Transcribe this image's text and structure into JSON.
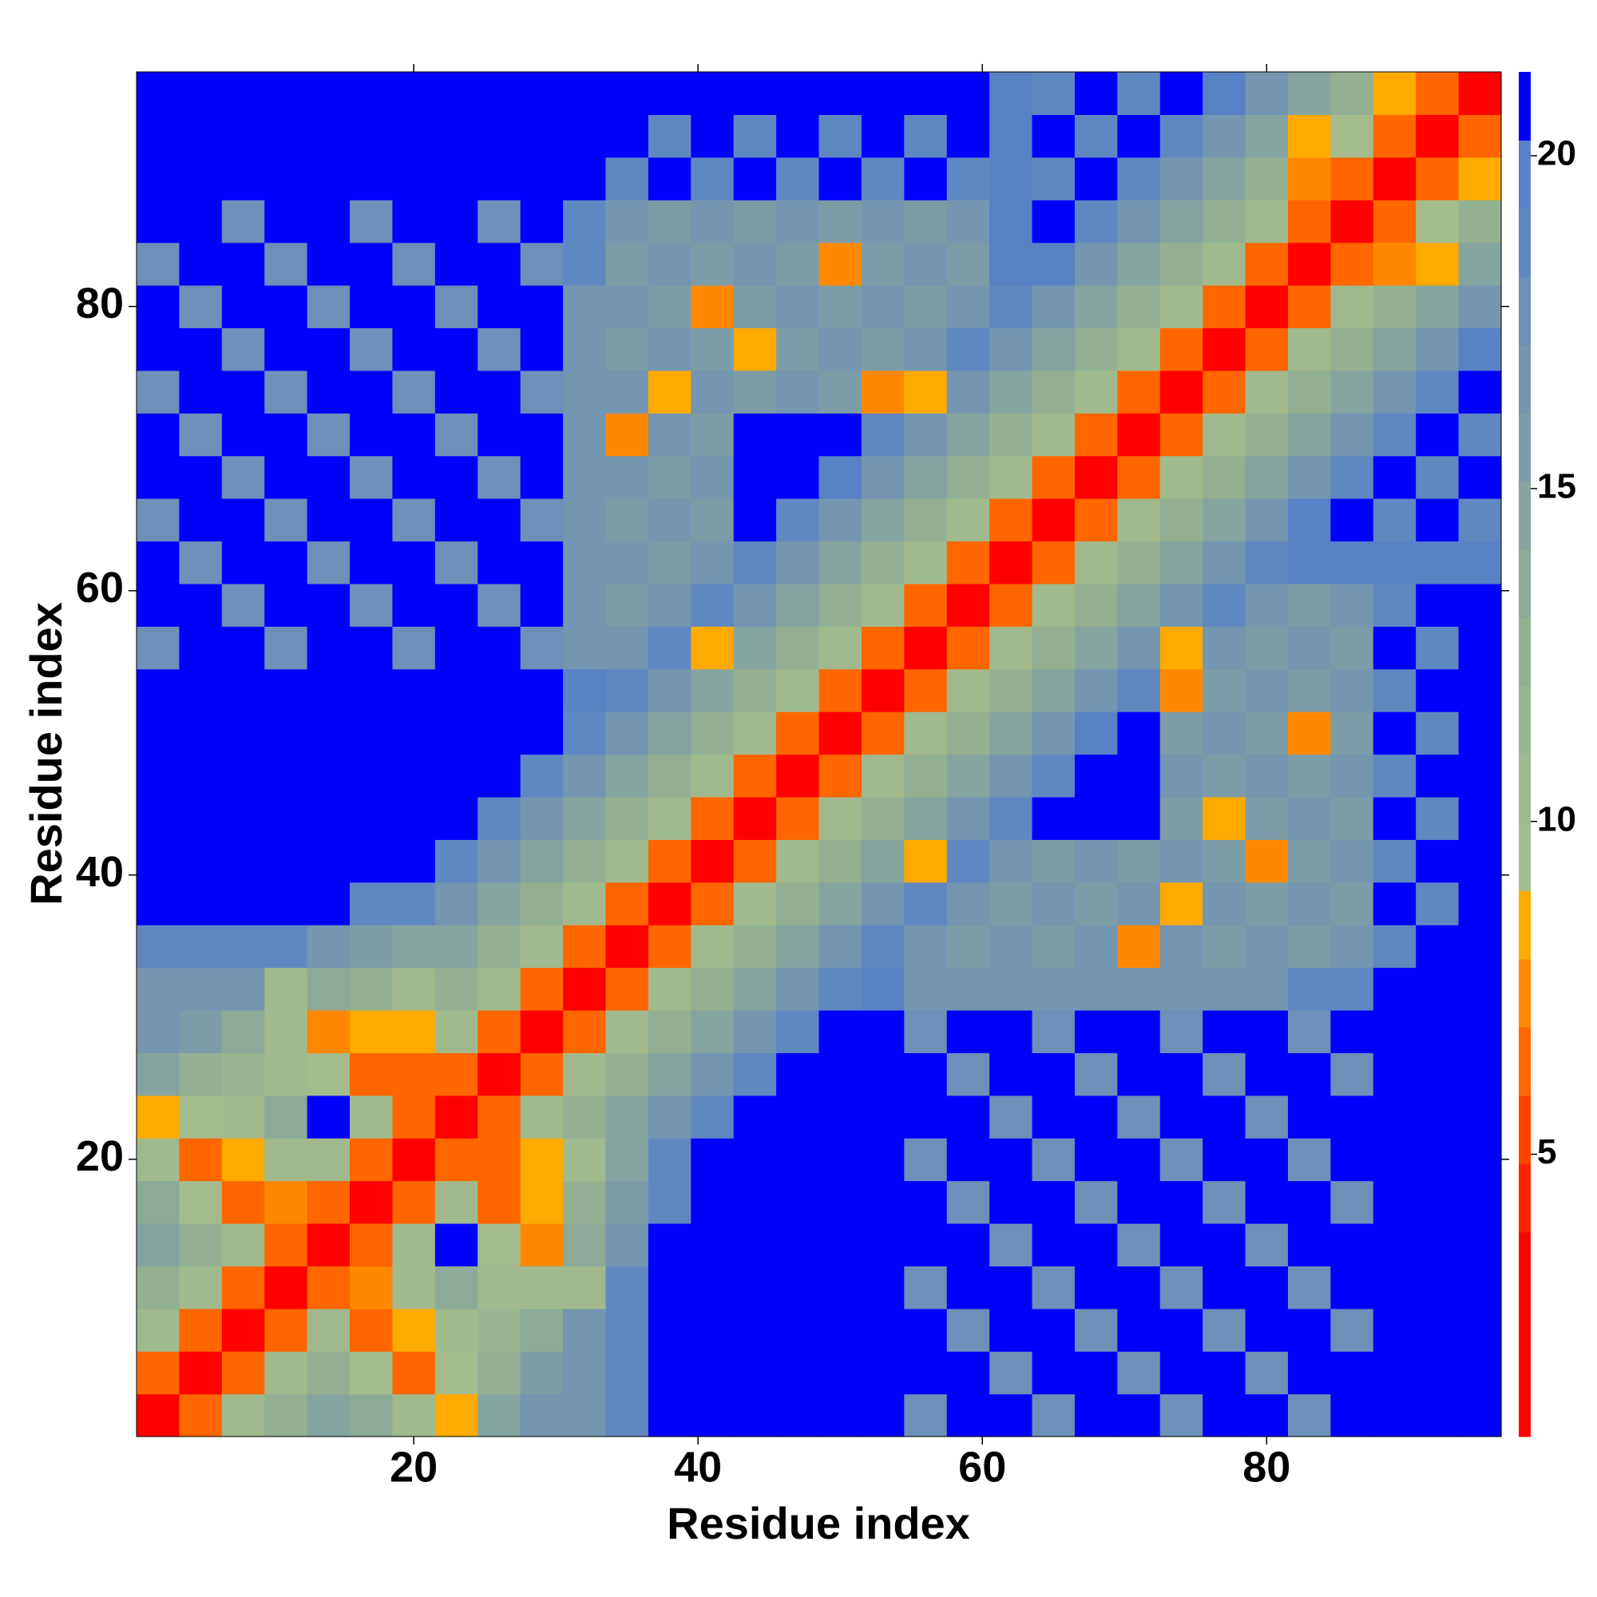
{
  "chart_data": {
    "type": "heatmap",
    "x_label": "Residue index",
    "y_label": "Residue index",
    "x": [
      2,
      5,
      8,
      11,
      14,
      17,
      20,
      23,
      26,
      29,
      32,
      35,
      38,
      41,
      44,
      47,
      50,
      53,
      56,
      59,
      62,
      65,
      68,
      71,
      74,
      77,
      80,
      83,
      86,
      89,
      92,
      95
    ],
    "y": [
      2,
      5,
      8,
      11,
      14,
      17,
      20,
      23,
      26,
      29,
      32,
      35,
      38,
      41,
      44,
      47,
      50,
      53,
      56,
      59,
      62,
      65,
      68,
      71,
      74,
      77,
      80,
      83,
      86,
      89,
      92,
      95
    ],
    "xlim": [
      0.5,
      96.5
    ],
    "ylim": [
      0.5,
      96.5
    ],
    "xticks": [
      20,
      40,
      60,
      80
    ],
    "yticks": [
      20,
      40,
      60,
      80
    ],
    "zlim": [
      0.76,
      21.26
    ],
    "zticks": [
      5,
      10,
      15,
      20
    ],
    "colorscale": [
      "#ff0000",
      "#ff0000",
      "#ff0000",
      "#ff2200",
      "#ff4400",
      "#ff6600",
      "#ff8800",
      "#ffaa00",
      "#a4bc8c",
      "#a0ba8e",
      "#9ab690",
      "#94b092",
      "#8caa98",
      "#84a4a0",
      "#7c9ca8",
      "#7496b0",
      "#6c90b8",
      "#6088c0",
      "#5882c4",
      "#0000ff"
    ],
    "z": [
      [
        3,
        6,
        11,
        13,
        15,
        14,
        11,
        8,
        15,
        17,
        17,
        19,
        21,
        21,
        21,
        21,
        21,
        21,
        18,
        21,
        21,
        18,
        21,
        21,
        18,
        21,
        21,
        18,
        21,
        21,
        21,
        21
      ],
      [
        6,
        3,
        6,
        11,
        13,
        9,
        6,
        9,
        13,
        16,
        17,
        19,
        21,
        21,
        21,
        21,
        21,
        21,
        21,
        21,
        18,
        21,
        21,
        18,
        21,
        21,
        18,
        21,
        21,
        21,
        21,
        21
      ],
      [
        11,
        6,
        3,
        6,
        11,
        6,
        8,
        10,
        12,
        14,
        17,
        19,
        21,
        21,
        21,
        21,
        21,
        21,
        21,
        18,
        21,
        21,
        18,
        21,
        21,
        18,
        21,
        21,
        18,
        21,
        21,
        21
      ],
      [
        13,
        11,
        6,
        3,
        6,
        7,
        11,
        14,
        10,
        11,
        10,
        19,
        21,
        21,
        21,
        21,
        21,
        21,
        18,
        21,
        21,
        18,
        21,
        21,
        18,
        21,
        21,
        18,
        21,
        21,
        21,
        21
      ],
      [
        15,
        13,
        11,
        6,
        3,
        6,
        11,
        21,
        9,
        7,
        14,
        17,
        21,
        21,
        21,
        21,
        21,
        21,
        21,
        21,
        18,
        21,
        21,
        18,
        21,
        21,
        18,
        21,
        21,
        21,
        21,
        21
      ],
      [
        14,
        9,
        6,
        7,
        6,
        3,
        6,
        11,
        6,
        8,
        13,
        16,
        19,
        21,
        21,
        21,
        21,
        21,
        21,
        18,
        21,
        21,
        18,
        21,
        21,
        18,
        21,
        21,
        18,
        21,
        21,
        21
      ],
      [
        11,
        6,
        8,
        11,
        11,
        6,
        3,
        6,
        6,
        8,
        11,
        15,
        19,
        21,
        21,
        21,
        21,
        21,
        18,
        21,
        21,
        18,
        21,
        21,
        18,
        21,
        21,
        18,
        21,
        21,
        21,
        21
      ],
      [
        8,
        9,
        10,
        14,
        21,
        11,
        6,
        3,
        6,
        11,
        13,
        15,
        17,
        19,
        21,
        21,
        21,
        21,
        21,
        21,
        18,
        21,
        21,
        18,
        21,
        21,
        18,
        21,
        21,
        21,
        21,
        21
      ],
      [
        15,
        13,
        12,
        10,
        9,
        6,
        6,
        6,
        3,
        6,
        11,
        13,
        15,
        17,
        19,
        21,
        21,
        21,
        21,
        18,
        21,
        21,
        18,
        21,
        21,
        18,
        21,
        21,
        18,
        21,
        21,
        21
      ],
      [
        17,
        16,
        14,
        11,
        7,
        8,
        8,
        11,
        6,
        3,
        6,
        11,
        13,
        15,
        17,
        19,
        21,
        21,
        18,
        21,
        21,
        18,
        21,
        21,
        18,
        21,
        21,
        18,
        21,
        21,
        21,
        21
      ],
      [
        17,
        17,
        17,
        10,
        14,
        13,
        11,
        13,
        11,
        6,
        3,
        6,
        11,
        13,
        15,
        17,
        19,
        20,
        17,
        17,
        17,
        17,
        17,
        17,
        17,
        17,
        17,
        19,
        19,
        21,
        21,
        21
      ],
      [
        19,
        19,
        19,
        19,
        17,
        16,
        15,
        15,
        13,
        11,
        6,
        3,
        6,
        11,
        13,
        15,
        17,
        19,
        17,
        16,
        17,
        16,
        17,
        7,
        17,
        16,
        17,
        16,
        17,
        19,
        21,
        21
      ],
      [
        21,
        21,
        21,
        21,
        21,
        19,
        19,
        17,
        15,
        13,
        11,
        6,
        3,
        6,
        11,
        13,
        15,
        17,
        19,
        17,
        16,
        17,
        16,
        17,
        8,
        17,
        16,
        17,
        16,
        21,
        19,
        21
      ],
      [
        21,
        21,
        21,
        21,
        21,
        21,
        21,
        19,
        17,
        15,
        13,
        11,
        6,
        3,
        6,
        11,
        13,
        15,
        8,
        19,
        17,
        16,
        17,
        16,
        17,
        16,
        7,
        16,
        17,
        19,
        21,
        21
      ],
      [
        21,
        21,
        21,
        21,
        21,
        21,
        21,
        21,
        19,
        17,
        15,
        13,
        11,
        6,
        3,
        6,
        11,
        13,
        15,
        17,
        19,
        21,
        21,
        21,
        16,
        8,
        16,
        17,
        16,
        21,
        19,
        21
      ],
      [
        21,
        21,
        21,
        21,
        21,
        21,
        21,
        21,
        21,
        19,
        17,
        15,
        13,
        11,
        6,
        3,
        6,
        11,
        13,
        15,
        17,
        19,
        21,
        21,
        17,
        16,
        17,
        16,
        17,
        19,
        21,
        21
      ],
      [
        21,
        21,
        21,
        21,
        21,
        21,
        21,
        21,
        21,
        21,
        19,
        17,
        15,
        13,
        11,
        6,
        3,
        6,
        11,
        13,
        15,
        17,
        20,
        21,
        16,
        17,
        16,
        7,
        16,
        21,
        19,
        21
      ],
      [
        21,
        21,
        21,
        21,
        21,
        21,
        21,
        21,
        21,
        21,
        20,
        19,
        17,
        15,
        13,
        11,
        6,
        3,
        6,
        11,
        13,
        15,
        17,
        19,
        7,
        16,
        17,
        16,
        17,
        19,
        21,
        21
      ],
      [
        18,
        21,
        21,
        18,
        21,
        21,
        18,
        21,
        21,
        18,
        17,
        17,
        19,
        8,
        15,
        13,
        11,
        6,
        3,
        6,
        11,
        13,
        15,
        17,
        8,
        17,
        16,
        17,
        16,
        21,
        19,
        21
      ],
      [
        21,
        21,
        18,
        21,
        21,
        18,
        21,
        21,
        18,
        21,
        17,
        16,
        17,
        19,
        17,
        15,
        13,
        11,
        6,
        3,
        6,
        11,
        13,
        15,
        17,
        19,
        17,
        16,
        17,
        19,
        21,
        21
      ],
      [
        21,
        18,
        21,
        21,
        18,
        21,
        21,
        18,
        21,
        21,
        17,
        17,
        16,
        17,
        19,
        17,
        15,
        13,
        11,
        6,
        3,
        6,
        11,
        13,
        15,
        17,
        19,
        20,
        20,
        20,
        20,
        20
      ],
      [
        18,
        21,
        21,
        18,
        21,
        21,
        18,
        21,
        21,
        18,
        17,
        16,
        17,
        16,
        21,
        19,
        17,
        15,
        13,
        11,
        6,
        3,
        6,
        11,
        13,
        15,
        17,
        20,
        21,
        19,
        21,
        19
      ],
      [
        21,
        21,
        18,
        21,
        21,
        18,
        21,
        21,
        18,
        21,
        17,
        17,
        16,
        17,
        21,
        21,
        20,
        17,
        15,
        13,
        11,
        6,
        3,
        6,
        11,
        13,
        15,
        17,
        19,
        21,
        19,
        21
      ],
      [
        21,
        18,
        21,
        21,
        18,
        21,
        21,
        18,
        21,
        21,
        17,
        7,
        17,
        16,
        21,
        21,
        21,
        19,
        17,
        15,
        13,
        11,
        6,
        3,
        6,
        11,
        13,
        15,
        17,
        19,
        21,
        19
      ],
      [
        18,
        21,
        21,
        18,
        21,
        21,
        18,
        21,
        21,
        18,
        17,
        17,
        8,
        17,
        16,
        17,
        16,
        7,
        8,
        17,
        15,
        13,
        11,
        6,
        3,
        6,
        11,
        13,
        15,
        17,
        19,
        21
      ],
      [
        21,
        21,
        18,
        21,
        21,
        18,
        21,
        21,
        18,
        21,
        17,
        16,
        17,
        16,
        8,
        16,
        17,
        16,
        17,
        19,
        17,
        15,
        13,
        11,
        6,
        3,
        6,
        11,
        13,
        15,
        17,
        20
      ],
      [
        21,
        18,
        21,
        21,
        18,
        21,
        21,
        18,
        21,
        21,
        17,
        17,
        16,
        7,
        16,
        17,
        16,
        17,
        16,
        17,
        19,
        17,
        15,
        13,
        11,
        6,
        3,
        6,
        11,
        13,
        15,
        17
      ],
      [
        18,
        21,
        21,
        18,
        21,
        21,
        18,
        21,
        21,
        18,
        19,
        16,
        17,
        16,
        17,
        16,
        7,
        16,
        17,
        16,
        20,
        20,
        17,
        15,
        13,
        11,
        6,
        3,
        6,
        7,
        8,
        15
      ],
      [
        21,
        21,
        18,
        21,
        21,
        18,
        21,
        21,
        18,
        21,
        19,
        17,
        16,
        17,
        16,
        17,
        16,
        17,
        16,
        17,
        20,
        21,
        19,
        17,
        15,
        13,
        11,
        6,
        3,
        6,
        9,
        13
      ],
      [
        21,
        21,
        21,
        21,
        21,
        21,
        21,
        21,
        21,
        21,
        21,
        19,
        21,
        19,
        21,
        19,
        21,
        19,
        21,
        19,
        20,
        19,
        21,
        19,
        17,
        15,
        13,
        7,
        6,
        3,
        6,
        8
      ],
      [
        21,
        21,
        21,
        21,
        21,
        21,
        21,
        21,
        21,
        21,
        21,
        21,
        19,
        21,
        19,
        21,
        19,
        21,
        19,
        21,
        20,
        21,
        19,
        21,
        19,
        17,
        15,
        8,
        9,
        6,
        3,
        6
      ],
      [
        21,
        21,
        21,
        21,
        21,
        21,
        21,
        21,
        21,
        21,
        21,
        21,
        21,
        21,
        21,
        21,
        21,
        21,
        21,
        21,
        20,
        19,
        21,
        19,
        21,
        20,
        17,
        15,
        13,
        8,
        6,
        3
      ]
    ]
  }
}
